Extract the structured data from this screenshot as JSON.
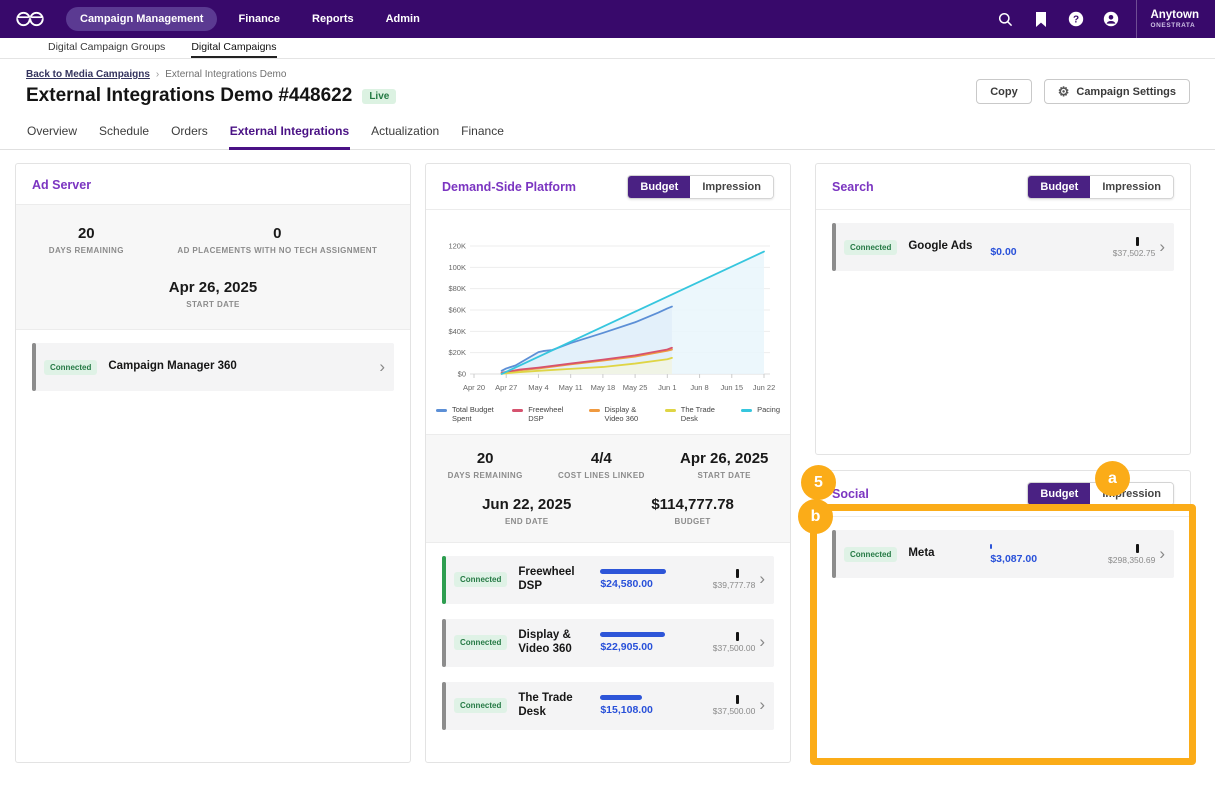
{
  "navbar": {
    "items": [
      {
        "label": "Campaign Management",
        "active": true
      },
      {
        "label": "Finance",
        "active": false
      },
      {
        "label": "Reports",
        "active": false
      },
      {
        "label": "Admin",
        "active": false
      }
    ],
    "icons": [
      "search-icon",
      "bookmark-icon",
      "help-icon",
      "account-icon"
    ],
    "org": {
      "name": "Anytown",
      "sub": "ONESTRATA"
    }
  },
  "subnav": {
    "items": [
      {
        "label": "Digital Campaign Groups",
        "active": false
      },
      {
        "label": "Digital Campaigns",
        "active": true
      }
    ]
  },
  "breadcrumb": {
    "link": "Back to Media Campaigns",
    "separator": "›",
    "current": "External Integrations Demo"
  },
  "header": {
    "title": "External Integrations Demo #448622",
    "status": "Live",
    "copy_label": "Copy",
    "settings_label": "Campaign Settings"
  },
  "tabs": [
    {
      "label": "Overview",
      "active": false
    },
    {
      "label": "Schedule",
      "active": false
    },
    {
      "label": "Orders",
      "active": false
    },
    {
      "label": "External Integrations",
      "active": true
    },
    {
      "label": "Actualization",
      "active": false
    },
    {
      "label": "Finance",
      "active": false
    }
  ],
  "toggle_labels": {
    "budget": "Budget",
    "impression": "Impression"
  },
  "cards": {
    "ad_server": {
      "title": "Ad Server",
      "stats": [
        {
          "value": "20",
          "label": "DAYS REMAINING"
        },
        {
          "value": "0",
          "label": "AD PLACEMENTS WITH NO TECH ASSIGNMENT"
        }
      ],
      "date_stat": {
        "value": "Apr 26, 2025",
        "label": "START DATE"
      },
      "rows": [
        {
          "status": "Connected",
          "name": "Campaign Manager 360",
          "accent": "gray"
        }
      ]
    },
    "dsp": {
      "title": "Demand-Side Platform",
      "stats_row1": [
        {
          "value": "20",
          "label": "DAYS REMAINING"
        },
        {
          "value": "4/4",
          "label": "COST LINES LINKED"
        },
        {
          "value": "Apr 26, 2025",
          "label": "START DATE"
        }
      ],
      "stats_row2": [
        {
          "value": "Jun 22, 2025",
          "label": "END DATE"
        },
        {
          "value": "$114,777.78",
          "label": "BUDGET"
        }
      ],
      "rows": [
        {
          "status": "Connected",
          "name": "Freewheel DSP",
          "spent": "$24,580.00",
          "total": "$39,777.78",
          "progress": 0.62,
          "accent": "green"
        },
        {
          "status": "Connected",
          "name": "Display & Video 360",
          "spent": "$22,905.00",
          "total": "$37,500.00",
          "progress": 0.61,
          "accent": "gray"
        },
        {
          "status": "Connected",
          "name": "The Trade Desk",
          "spent": "$15,108.00",
          "total": "$37,500.00",
          "progress": 0.4,
          "accent": "gray"
        }
      ]
    },
    "search": {
      "title": "Search",
      "rows": [
        {
          "status": "Connected",
          "name": "Google Ads",
          "spent": "$0.00",
          "total": "$37,502.75",
          "progress": 0,
          "accent": "gray"
        }
      ]
    },
    "social": {
      "title": "Social",
      "rows": [
        {
          "status": "Connected",
          "name": "Meta",
          "spent": "$3,087.00",
          "total": "$298,350.69",
          "progress": 0.0103,
          "accent": "gray"
        }
      ]
    }
  },
  "chart_data": {
    "type": "line",
    "title": "",
    "xlabel": "",
    "ylabel": "",
    "ylim": [
      0,
      125000
    ],
    "grid": true,
    "legend_position": "bottom",
    "x_ticks": [
      {
        "d": 0,
        "label": "Apr 20"
      },
      {
        "d": 7,
        "label": "Apr 27"
      },
      {
        "d": 14,
        "label": "May 4"
      },
      {
        "d": 21,
        "label": "May 11"
      },
      {
        "d": 28,
        "label": "May 18"
      },
      {
        "d": 35,
        "label": "May 25"
      },
      {
        "d": 42,
        "label": "Jun 1"
      },
      {
        "d": 49,
        "label": "Jun 8"
      },
      {
        "d": 56,
        "label": "Jun 15"
      },
      {
        "d": 63,
        "label": "Jun 22"
      }
    ],
    "y_ticks": [
      {
        "v": 0,
        "label": "$0"
      },
      {
        "v": 20000,
        "label": "$20K"
      },
      {
        "v": 40000,
        "label": "$40K"
      },
      {
        "v": 60000,
        "label": "$60K"
      },
      {
        "v": 80000,
        "label": "$80K"
      },
      {
        "v": 100000,
        "label": "100K"
      },
      {
        "v": 120000,
        "label": "120K"
      }
    ],
    "series": [
      {
        "name": "Total Budget Spent",
        "color": "#5C8FD6",
        "area": "#E2EEF9",
        "points": [
          [
            6,
            3000
          ],
          [
            7,
            5200
          ],
          [
            9,
            8000
          ],
          [
            14,
            20500
          ],
          [
            15,
            21500
          ],
          [
            17,
            22500
          ],
          [
            21,
            29000
          ],
          [
            28,
            38500
          ],
          [
            35,
            48500
          ],
          [
            40,
            57500
          ],
          [
            42,
            61500
          ],
          [
            43,
            63200
          ]
        ]
      },
      {
        "name": "Freewheel DSP",
        "color": "#D6536F",
        "points": [
          [
            6,
            1200
          ],
          [
            10,
            4200
          ],
          [
            14,
            6000
          ],
          [
            21,
            9800
          ],
          [
            28,
            13500
          ],
          [
            35,
            17500
          ],
          [
            42,
            23000
          ],
          [
            43,
            24580
          ]
        ]
      },
      {
        "name": "Display & Video 360",
        "color": "#F09A40",
        "points": [
          [
            6,
            700
          ],
          [
            10,
            3500
          ],
          [
            14,
            5200
          ],
          [
            21,
            9000
          ],
          [
            28,
            12500
          ],
          [
            35,
            16300
          ],
          [
            42,
            21800
          ],
          [
            43,
            22905
          ]
        ]
      },
      {
        "name": "The Trade Desk",
        "color": "#DFD545",
        "area": "#F2F4E2",
        "points": [
          [
            6,
            300
          ],
          [
            10,
            1800
          ],
          [
            14,
            3000
          ],
          [
            21,
            4800
          ],
          [
            28,
            6600
          ],
          [
            35,
            9800
          ],
          [
            42,
            13800
          ],
          [
            43,
            15108
          ]
        ]
      },
      {
        "name": "Pacing",
        "color": "#36C6DE",
        "area": "#E9F6FB",
        "points": [
          [
            6,
            0
          ],
          [
            63,
            114778
          ]
        ]
      }
    ]
  },
  "annotations": {
    "color": "#FBAC18",
    "callouts": [
      "5",
      "a",
      "b"
    ]
  }
}
